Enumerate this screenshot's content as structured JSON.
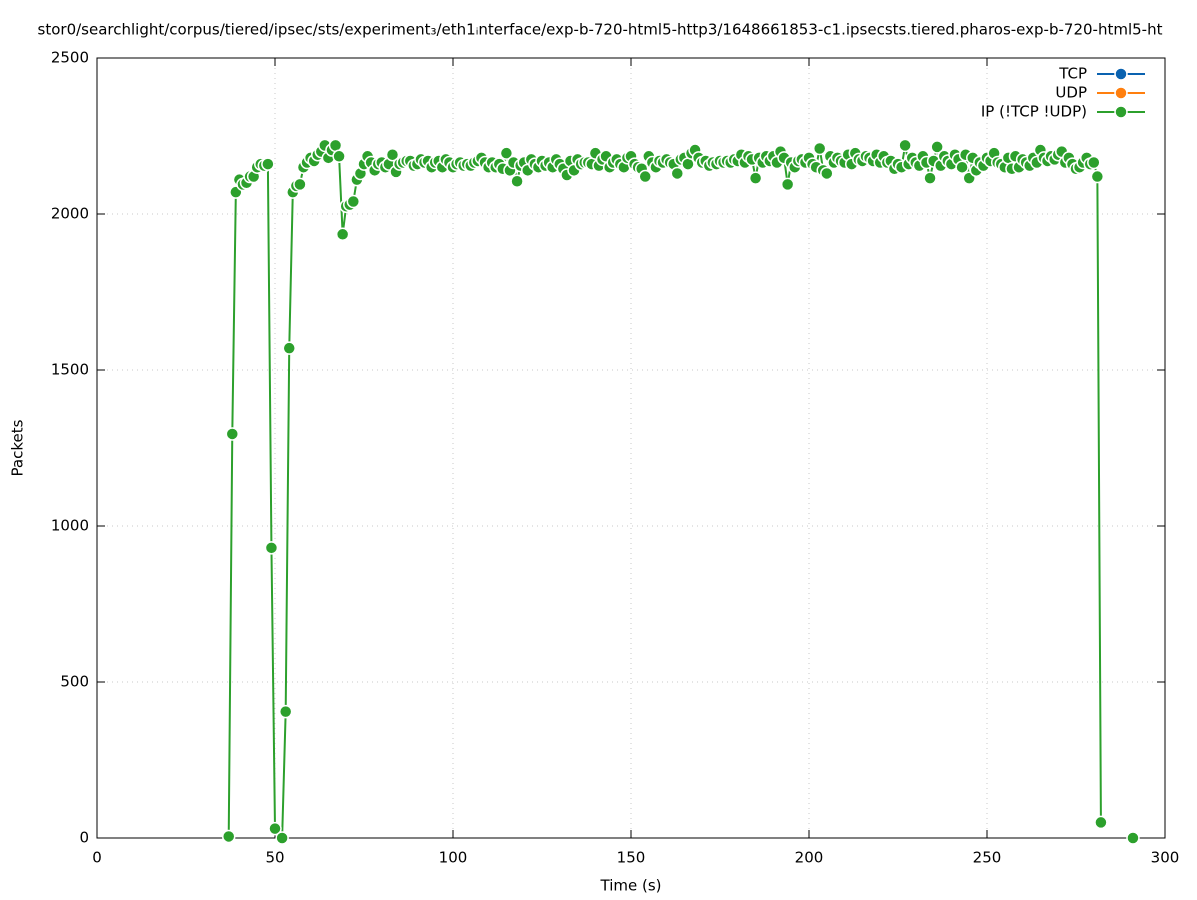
{
  "chart_data": {
    "type": "line",
    "title": "stor0/searchlight/corpus/tiered/ipsec/sts/experiment₃/eth1ᵢnterface/exp-b-720-html5-http3/1648661853-c1.ipsecsts.tiered.pharos-exp-b-720-html5-ht",
    "x_label": "Time (s)",
    "y_label": "Packets",
    "xlim": [
      0,
      300
    ],
    "xticks": [
      0,
      50,
      100,
      150,
      200,
      250,
      300
    ],
    "ylim": [
      0,
      2500
    ],
    "yticks": [
      0,
      500,
      1000,
      1500,
      2000,
      2500
    ],
    "grid": true,
    "legend": "top-right",
    "series": [
      {
        "name": "TCP",
        "color": "#0a62b0",
        "x": [],
        "values": []
      },
      {
        "name": "UDP",
        "color": "#ff7f0e",
        "x": [],
        "values": []
      },
      {
        "name": "IP (!TCP  !UDP)",
        "color": "#2ca02c",
        "x": [
          37,
          38,
          39,
          40,
          41,
          42,
          43,
          44,
          45,
          46,
          47,
          48,
          49,
          50,
          52,
          53,
          54,
          55,
          56,
          57,
          58,
          59,
          60,
          61,
          62,
          63,
          64,
          65,
          66,
          67,
          68,
          69,
          70,
          71,
          72,
          73,
          74,
          75,
          76,
          77,
          78,
          79,
          80,
          81,
          82,
          83,
          84,
          85,
          86,
          87,
          88,
          89,
          90,
          91,
          92,
          93,
          94,
          95,
          96,
          97,
          98,
          99,
          100,
          101,
          102,
          103,
          104,
          105,
          106,
          107,
          108,
          109,
          110,
          111,
          112,
          113,
          114,
          115,
          116,
          117,
          118,
          119,
          120,
          121,
          122,
          123,
          124,
          125,
          126,
          127,
          128,
          129,
          130,
          131,
          132,
          133,
          134,
          135,
          136,
          137,
          138,
          139,
          140,
          141,
          142,
          143,
          144,
          145,
          146,
          147,
          148,
          149,
          150,
          151,
          152,
          153,
          154,
          155,
          156,
          157,
          158,
          159,
          160,
          161,
          162,
          163,
          164,
          165,
          166,
          167,
          168,
          169,
          170,
          171,
          172,
          173,
          174,
          175,
          176,
          177,
          178,
          179,
          180,
          181,
          182,
          183,
          184,
          185,
          186,
          187,
          188,
          189,
          190,
          191,
          192,
          193,
          194,
          195,
          196,
          197,
          198,
          199,
          200,
          201,
          202,
          203,
          204,
          205,
          206,
          207,
          208,
          209,
          210,
          211,
          212,
          213,
          214,
          215,
          216,
          217,
          218,
          219,
          220,
          221,
          222,
          223,
          224,
          225,
          226,
          227,
          228,
          229,
          230,
          231,
          232,
          233,
          234,
          235,
          236,
          237,
          238,
          239,
          240,
          241,
          242,
          243,
          244,
          245,
          246,
          247,
          248,
          249,
          250,
          251,
          252,
          253,
          254,
          255,
          256,
          257,
          258,
          259,
          260,
          261,
          262,
          263,
          264,
          265,
          266,
          267,
          268,
          269,
          270,
          271,
          272,
          273,
          274,
          275,
          276,
          277,
          278,
          279,
          280,
          281,
          282,
          286,
          291
        ],
        "values": [
          5,
          1295,
          2070,
          2110,
          2095,
          2100,
          2120,
          2120,
          2150,
          2160,
          2155,
          2160,
          930,
          30,
          0,
          405,
          1570,
          2070,
          2090,
          2095,
          2150,
          2165,
          2180,
          2170,
          2190,
          2200,
          2220,
          2180,
          2205,
          2220,
          2185,
          1935,
          2025,
          2030,
          2040,
          2110,
          2130,
          2160,
          2185,
          2165,
          2140,
          2160,
          2165,
          2150,
          2160,
          2190,
          2135,
          2160,
          2165,
          2170,
          2170,
          2155,
          2160,
          2175,
          2165,
          2170,
          2150,
          2165,
          2170,
          2150,
          2175,
          2165,
          2150,
          2160,
          2165,
          2155,
          2160,
          2155,
          2165,
          2170,
          2180,
          2165,
          2150,
          2165,
          2150,
          2160,
          2145,
          2195,
          2140,
          2165,
          2105,
          2155,
          2165,
          2140,
          2175,
          2160,
          2150,
          2170,
          2155,
          2165,
          2150,
          2175,
          2160,
          2145,
          2125,
          2170,
          2140,
          2175,
          2160,
          2165,
          2165,
          2160,
          2195,
          2155,
          2175,
          2185,
          2150,
          2165,
          2175,
          2160,
          2150,
          2180,
          2185,
          2160,
          2150,
          2145,
          2120,
          2185,
          2165,
          2150,
          2170,
          2165,
          2175,
          2165,
          2160,
          2130,
          2175,
          2180,
          2160,
          2195,
          2205,
          2180,
          2165,
          2170,
          2155,
          2165,
          2160,
          2170,
          2165,
          2170,
          2165,
          2175,
          2170,
          2190,
          2165,
          2185,
          2175,
          2115,
          2180,
          2165,
          2185,
          2170,
          2185,
          2165,
          2200,
          2180,
          2095,
          2165,
          2150,
          2170,
          2175,
          2165,
          2180,
          2160,
          2150,
          2210,
          2140,
          2130,
          2185,
          2165,
          2180,
          2170,
          2165,
          2190,
          2160,
          2195,
          2175,
          2170,
          2185,
          2180,
          2170,
          2190,
          2165,
          2185,
          2165,
          2170,
          2145,
          2160,
          2150,
          2220,
          2160,
          2180,
          2165,
          2155,
          2185,
          2165,
          2115,
          2170,
          2215,
          2155,
          2185,
          2170,
          2160,
          2190,
          2175,
          2150,
          2190,
          2115,
          2180,
          2140,
          2165,
          2155,
          2180,
          2170,
          2195,
          2165,
          2160,
          2150,
          2180,
          2145,
          2185,
          2150,
          2175,
          2165,
          2155,
          2180,
          2165,
          2205,
          2180,
          2170,
          2185,
          2175,
          2190,
          2200,
          2165,
          2180,
          2160,
          2145,
          2150,
          2165,
          2180,
          2160,
          2165,
          2120,
          50,
          null,
          0
        ]
      }
    ]
  }
}
